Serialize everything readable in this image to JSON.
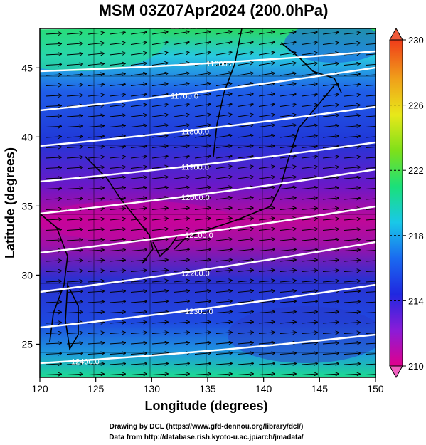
{
  "title": "MSM 03Z07Apr2024 (200.0hPa)",
  "xlabel": "Longitude (degrees)",
  "ylabel": "Latitude  (degrees)",
  "x_ticks": [
    "120",
    "125",
    "130",
    "135",
    "140",
    "145",
    "150"
  ],
  "y_ticks": [
    "25",
    "30",
    "35",
    "40",
    "45"
  ],
  "colorbar": {
    "min": 210,
    "max": 230,
    "tick_labels": [
      "230",
      "226",
      "222",
      "218",
      "214",
      "210"
    ],
    "colors": [
      "#e0008c",
      "#6a1cd8",
      "#1a28e0",
      "#1a6af0",
      "#19c8e8",
      "#1ae07a",
      "#7ee01a",
      "#e8e81a",
      "#f0a01a",
      "#f03c1a"
    ]
  },
  "contours": [
    {
      "label": "11600.0",
      "value": 11600
    },
    {
      "label": "11600.0",
      "value": 11600
    },
    {
      "label": "11700.0",
      "value": 11700
    },
    {
      "label": "11800.0",
      "value": 11800
    },
    {
      "label": "11900.0",
      "value": 11900
    },
    {
      "label": "12000.0",
      "value": 12000
    },
    {
      "label": "12100.0",
      "value": 12100
    },
    {
      "label": "12200.0",
      "value": 12200
    },
    {
      "label": "12300.0",
      "value": 12300
    },
    {
      "label": "12400.0",
      "value": 12400
    }
  ],
  "credits": {
    "line1": "Drawing by DCL (https://www.gfd-dennou.org/library/dcl/)",
    "line2": "Data from http://database.rish.kyoto-u.ac.jp/arch/jmadata/"
  }
}
